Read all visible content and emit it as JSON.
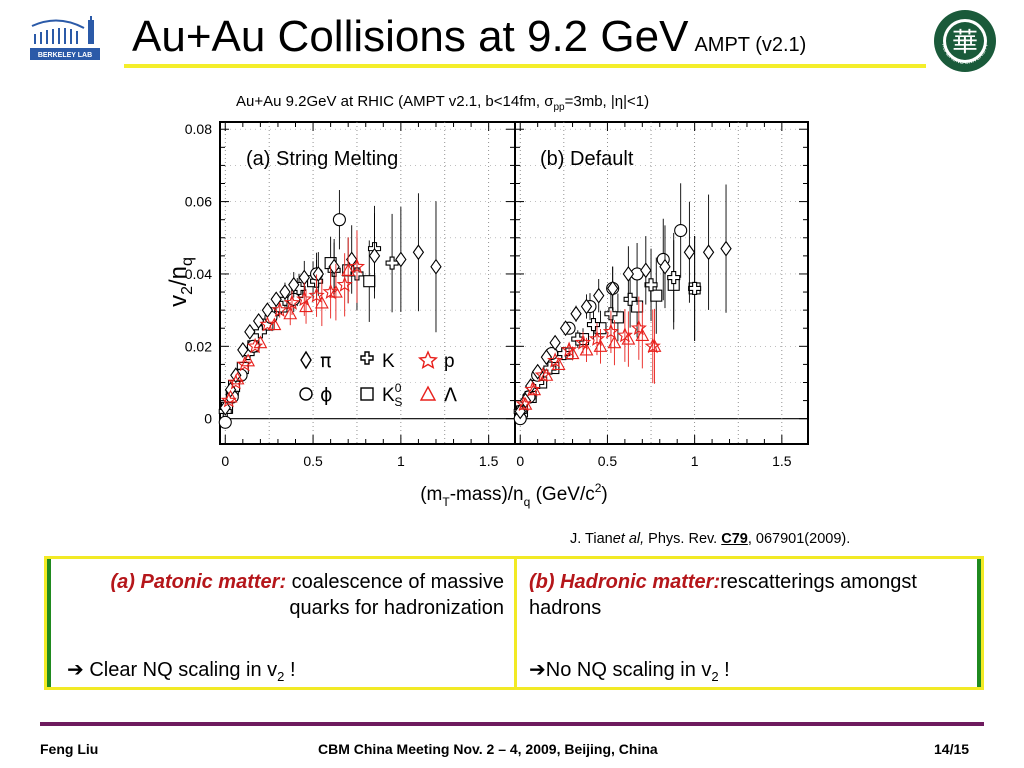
{
  "header": {
    "title": "Au+Au Collisions at 9.2 GeV",
    "subtitle": "AMPT (v2.1)"
  },
  "logos": {
    "left_caption": "BERKELEY LAB",
    "right_caption": "HUAZHONG UNIVERSITY",
    "right_mark": "華"
  },
  "figure": {
    "title_main": "Au+Au 9.2GeV at RHIC (AMPT v2.1, b<14fm, σ",
    "title_sub": "pp",
    "title_end": "=3mb, |η|<1)",
    "ylabel_main": "v",
    "ylabel_sub1": "2",
    "ylabel_mid": "/n",
    "ylabel_sub2": "q",
    "xlabel_a": "(m",
    "xlabel_sub1": "T",
    "xlabel_b": "-mass)/n",
    "xlabel_sub2": "q",
    "xlabel_c": " (GeV/c",
    "xlabel_sup": "2",
    "xlabel_d": ")",
    "y_ticks": [
      "0",
      "0.02",
      "0.04",
      "0.06",
      "0.08"
    ],
    "x_ticks_left": [
      "0",
      "0.5",
      "1",
      "1.5"
    ],
    "x_ticks_right": [
      "0",
      "0.5",
      "1",
      "1.5"
    ],
    "legend": {
      "pi": "π",
      "K": "K",
      "p": "p",
      "phi": "ϕ",
      "K0s_main": "K",
      "K0s_sup": "0",
      "K0s_sub": "S",
      "Lambda": "Λ"
    }
  },
  "chart_data": [
    {
      "type": "scatter",
      "panel_label": "(a) String Melting",
      "xlabel": "(mT-mass)/nq (GeV/c2)",
      "ylabel": "v2/nq",
      "xlim": [
        -0.03,
        1.65
      ],
      "ylim": [
        -0.007,
        0.082
      ],
      "series": [
        {
          "name": "π",
          "x": [
            0.0,
            0.03,
            0.06,
            0.1,
            0.14,
            0.19,
            0.24,
            0.29,
            0.34,
            0.39,
            0.45,
            0.53,
            0.62,
            0.72,
            0.85,
            1.0,
            1.1,
            1.2
          ],
          "y": [
            0.003,
            0.008,
            0.012,
            0.019,
            0.024,
            0.027,
            0.03,
            0.033,
            0.035,
            0.037,
            0.039,
            0.04,
            0.042,
            0.044,
            0.045,
            0.044,
            0.046,
            0.042
          ]
        },
        {
          "name": "K",
          "x": [
            0.0,
            0.04,
            0.08,
            0.13,
            0.2,
            0.27,
            0.34,
            0.42,
            0.52,
            0.62,
            0.75,
            0.85,
            0.95
          ],
          "y": [
            0.002,
            0.007,
            0.012,
            0.018,
            0.024,
            0.029,
            0.033,
            0.036,
            0.038,
            0.041,
            0.04,
            0.047,
            0.043
          ]
        },
        {
          "name": "p",
          "x": [
            0.02,
            0.06,
            0.11,
            0.17,
            0.24,
            0.31,
            0.38,
            0.45,
            0.52,
            0.6,
            0.68,
            0.75
          ],
          "y": [
            0.005,
            0.01,
            0.015,
            0.02,
            0.026,
            0.03,
            0.032,
            0.033,
            0.034,
            0.035,
            0.037,
            0.042
          ]
        },
        {
          "name": "ϕ",
          "x": [
            0.0,
            0.04,
            0.09,
            0.16,
            0.26,
            0.39,
            0.52,
            0.65
          ],
          "y": [
            -0.001,
            0.006,
            0.012,
            0.02,
            0.028,
            0.033,
            0.04,
            0.055
          ]
        },
        {
          "name": "K0S",
          "x": [
            0.01,
            0.05,
            0.1,
            0.16,
            0.24,
            0.32,
            0.41,
            0.5,
            0.6,
            0.7,
            0.82
          ],
          "y": [
            0.003,
            0.009,
            0.014,
            0.02,
            0.026,
            0.031,
            0.035,
            0.038,
            0.043,
            0.041,
            0.038
          ]
        },
        {
          "name": "Λ",
          "x": [
            0.03,
            0.07,
            0.13,
            0.2,
            0.28,
            0.37,
            0.46,
            0.55,
            0.63,
            0.7
          ],
          "y": [
            0.006,
            0.011,
            0.016,
            0.021,
            0.026,
            0.029,
            0.031,
            0.032,
            0.035,
            0.041
          ]
        }
      ]
    },
    {
      "type": "scatter",
      "panel_label": "(b) Default",
      "xlabel": "(mT-mass)/nq (GeV/c2)",
      "ylabel": "v2/nq",
      "xlim": [
        -0.03,
        1.65
      ],
      "ylim": [
        -0.007,
        0.082
      ],
      "series": [
        {
          "name": "π",
          "x": [
            0.0,
            0.03,
            0.06,
            0.1,
            0.15,
            0.2,
            0.26,
            0.32,
            0.38,
            0.45,
            0.53,
            0.62,
            0.72,
            0.83,
            0.97,
            1.08,
            1.18
          ],
          "y": [
            0.002,
            0.005,
            0.009,
            0.013,
            0.017,
            0.021,
            0.025,
            0.029,
            0.031,
            0.034,
            0.036,
            0.04,
            0.041,
            0.042,
            0.046,
            0.046,
            0.047
          ]
        },
        {
          "name": "K",
          "x": [
            0.0,
            0.05,
            0.1,
            0.17,
            0.25,
            0.33,
            0.42,
            0.52,
            0.63,
            0.75,
            0.88,
            1.0
          ],
          "y": [
            0.002,
            0.006,
            0.01,
            0.014,
            0.018,
            0.022,
            0.026,
            0.029,
            0.033,
            0.037,
            0.039,
            0.036
          ]
        },
        {
          "name": "p",
          "x": [
            0.02,
            0.07,
            0.13,
            0.2,
            0.28,
            0.36,
            0.44,
            0.52,
            0.6,
            0.68,
            0.76
          ],
          "y": [
            0.004,
            0.008,
            0.012,
            0.016,
            0.019,
            0.021,
            0.022,
            0.024,
            0.023,
            0.025,
            0.02
          ]
        },
        {
          "name": "ϕ",
          "x": [
            0.0,
            0.05,
            0.1,
            0.18,
            0.28,
            0.4,
            0.53,
            0.67,
            0.82,
            0.92
          ],
          "y": [
            0.0,
            0.006,
            0.012,
            0.018,
            0.025,
            0.031,
            0.036,
            0.04,
            0.044,
            0.052
          ]
        },
        {
          "name": "K0S",
          "x": [
            0.01,
            0.06,
            0.12,
            0.19,
            0.27,
            0.36,
            0.46,
            0.56,
            0.67,
            0.78,
            0.88,
            1.0
          ],
          "y": [
            0.002,
            0.006,
            0.01,
            0.014,
            0.018,
            0.022,
            0.025,
            0.028,
            0.031,
            0.034,
            0.037,
            0.036
          ]
        },
        {
          "name": "Λ",
          "x": [
            0.03,
            0.08,
            0.15,
            0.22,
            0.3,
            0.38,
            0.46,
            0.54,
            0.62,
            0.7,
            0.77
          ],
          "y": [
            0.004,
            0.008,
            0.012,
            0.015,
            0.018,
            0.019,
            0.02,
            0.021,
            0.022,
            0.023,
            0.02
          ]
        }
      ]
    }
  ],
  "citation": {
    "author": "J. Tian",
    "etal": "et al,",
    "journal": " Phys. Rev. ",
    "volume": "C79",
    "rest": ", 067901(2009)."
  },
  "boxes": {
    "left_heading": "(a) Patonic matter:",
    "left_text": " coalescence of massive quarks for hadronization",
    "left_conclusion_main": "Clear NQ scaling in v",
    "left_conclusion_sub": "2",
    "left_conclusion_end": "   !",
    "left_arrow": "➔",
    "right_heading": "(b) Hadronic matter:",
    "right_text": "rescatterings amongst hadrons",
    "right_conclusion_main": "No NQ scaling in v",
    "right_conclusion_sub": "2",
    "right_conclusion_end": " !",
    "right_arrow": "➔"
  },
  "footer": {
    "author": "Feng Liu",
    "meeting": "CBM China Meeting Nov. 2 – 4, 2009, Beijing, China",
    "page": "14/15"
  },
  "colors": {
    "title_rule": "#f4ee2a",
    "box_border": "#f2ea25",
    "box_side": "#1f8a1f",
    "heading": "#b5161a",
    "footer_rule": "#6e1a5e",
    "red_marker": "#e8201c",
    "logo_green": "#1a5a3a",
    "logo_blue": "#2b5aa8"
  }
}
